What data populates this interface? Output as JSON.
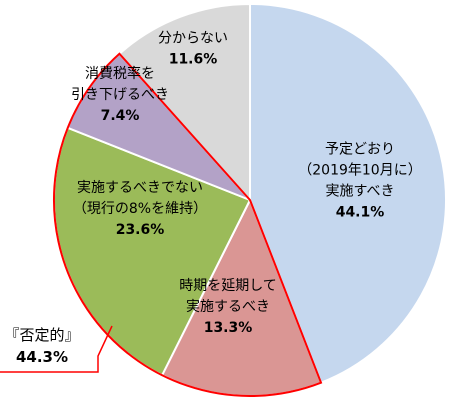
{
  "chart_data": {
    "type": "pie",
    "start_angle_deg": 0,
    "direction": "clockwise",
    "slices": [
      {
        "lines": [
          "予定どおり",
          "（2019年10月に）",
          "実施すべき"
        ],
        "pct_label": "44.1%",
        "value": 44.1,
        "color": "#c5d7ee"
      },
      {
        "lines": [
          "時期を延期して",
          "実施するべき"
        ],
        "pct_label": "13.3%",
        "value": 13.3,
        "color": "#da9694"
      },
      {
        "lines": [
          "実施するべきでない",
          "（現行の8%を維持）"
        ],
        "pct_label": "23.6%",
        "value": 23.6,
        "color": "#9bbb59"
      },
      {
        "lines": [
          "消費税率を",
          "引き下げるべき"
        ],
        "pct_label": "7.4%",
        "value": 7.4,
        "color": "#b3a2c7"
      },
      {
        "lines": [
          "分からない"
        ],
        "pct_label": "11.6%",
        "value": 11.6,
        "color": "#d9d9d9"
      }
    ],
    "highlight": {
      "label": "『否定的』",
      "pct_label": "44.3%",
      "slice_indices": [
        1,
        2,
        3
      ],
      "color": "#ff0000"
    }
  }
}
